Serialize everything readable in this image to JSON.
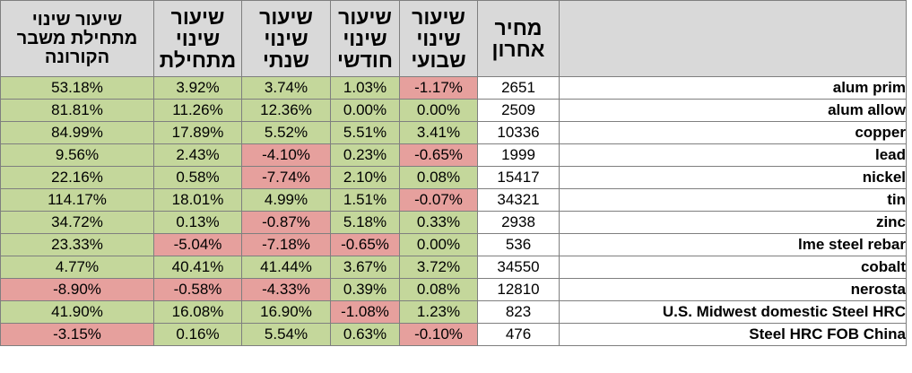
{
  "headers": {
    "since_crisis_line1": "שיעור שינוי",
    "since_crisis_line2": "מתחילת משבר",
    "since_crisis_line3": "הקורונה",
    "ytd_line1": "שיעור",
    "ytd_line2": "שינוי",
    "ytd_line3": "מתחילת",
    "yearly_line1": "שיעור",
    "yearly_line2": "שינוי",
    "yearly_line3": "שנתי",
    "monthly_line1": "שיעור",
    "monthly_line2": "שינוי",
    "monthly_line3": "חודשי",
    "weekly_line1": "שיעור",
    "weekly_line2": "שינוי",
    "weekly_line3": "שבועי",
    "price_line1": "מחיר",
    "price_line2": "אחרון",
    "name": ""
  },
  "colors": {
    "positive": "#c4d79b",
    "negative": "#e6a09d",
    "header": "#d9d9d9"
  },
  "rows": [
    {
      "name": "alum prim",
      "price": "2651",
      "weekly": "-1.17%",
      "monthly": "1.03%",
      "yearly": "3.74%",
      "ytd": "3.92%",
      "since_crisis": "53.18%"
    },
    {
      "name": "alum allow",
      "price": "2509",
      "weekly": "0.00%",
      "monthly": "0.00%",
      "yearly": "12.36%",
      "ytd": "11.26%",
      "since_crisis": "81.81%"
    },
    {
      "name": "copper",
      "price": "10336",
      "weekly": "3.41%",
      "monthly": "5.51%",
      "yearly": "5.52%",
      "ytd": "17.89%",
      "since_crisis": "84.99%"
    },
    {
      "name": "lead",
      "price": "1999",
      "weekly": "-0.65%",
      "monthly": "0.23%",
      "yearly": "-4.10%",
      "ytd": "2.43%",
      "since_crisis": "9.56%"
    },
    {
      "name": "nickel",
      "price": "15417",
      "weekly": "0.08%",
      "monthly": "2.10%",
      "yearly": "-7.74%",
      "ytd": "0.58%",
      "since_crisis": "22.16%"
    },
    {
      "name": "tin",
      "price": "34321",
      "weekly": "-0.07%",
      "monthly": "1.51%",
      "yearly": "4.99%",
      "ytd": "18.01%",
      "since_crisis": "114.17%"
    },
    {
      "name": "zinc",
      "price": "2938",
      "weekly": "0.33%",
      "monthly": "5.18%",
      "yearly": "-0.87%",
      "ytd": "0.13%",
      "since_crisis": "34.72%"
    },
    {
      "name": "lme steel rebar",
      "price": "536",
      "weekly": "0.00%",
      "monthly": "-0.65%",
      "yearly": "-7.18%",
      "ytd": "-5.04%",
      "since_crisis": "23.33%"
    },
    {
      "name": "cobalt",
      "price": "34550",
      "weekly": "3.72%",
      "monthly": "3.67%",
      "yearly": "41.44%",
      "ytd": "40.41%",
      "since_crisis": "4.77%"
    },
    {
      "name": "nerosta",
      "price": "12810",
      "weekly": "0.08%",
      "monthly": "0.39%",
      "yearly": "-4.33%",
      "ytd": "-0.58%",
      "since_crisis": "-8.90%"
    },
    {
      "name": "U.S. Midwest domestic Steel HRC",
      "price": "823",
      "weekly": "1.23%",
      "monthly": "-1.08%",
      "yearly": "16.90%",
      "ytd": "16.08%",
      "since_crisis": "41.90%"
    },
    {
      "name": "Steel HRC FOB China",
      "price": "476",
      "weekly": "-0.10%",
      "monthly": "0.63%",
      "yearly": "5.54%",
      "ytd": "0.16%",
      "since_crisis": "-3.15%"
    }
  ]
}
